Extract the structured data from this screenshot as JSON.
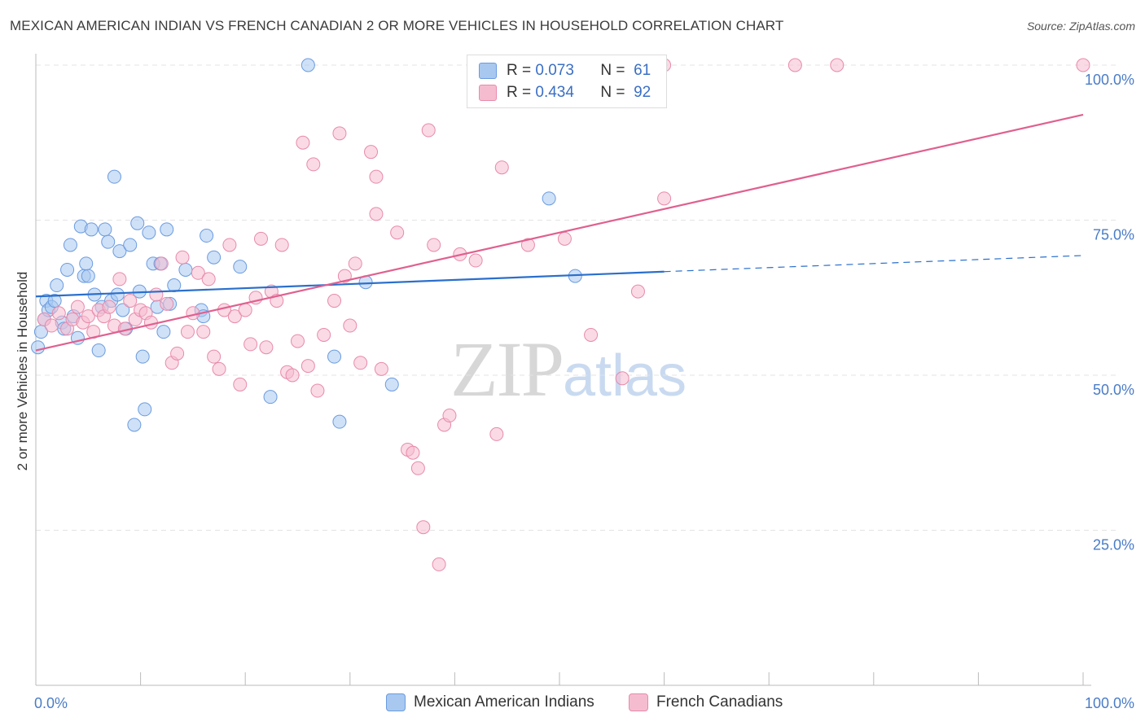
{
  "title": "MEXICAN AMERICAN INDIAN VS FRENCH CANADIAN 2 OR MORE VEHICLES IN HOUSEHOLD CORRELATION CHART",
  "source": "Source: ZipAtlas.com",
  "watermark": {
    "zip": "ZIP",
    "atlas": "atlas"
  },
  "legend": {
    "rows": [
      {
        "r_label": "R =",
        "r_value": "0.073",
        "n_label": "N =",
        "n_value": "61",
        "color": "#a8c8f0",
        "border": "#6a9be0"
      },
      {
        "r_label": "R =",
        "r_value": "0.434",
        "n_label": "N =",
        "n_value": "92",
        "color": "#f5bcd0",
        "border": "#e88aab"
      }
    ]
  },
  "bottom_legend": [
    {
      "label": "Mexican American Indians",
      "color": "#a8c8f0",
      "border": "#6a9be0"
    },
    {
      "label": "French Canadians",
      "color": "#f5bcd0",
      "border": "#e88aab"
    }
  ],
  "chart_data": {
    "type": "scatter",
    "title": "MEXICAN AMERICAN INDIAN VS FRENCH CANADIAN 2 OR MORE VEHICLES IN HOUSEHOLD CORRELATION CHART",
    "xlabel": "",
    "ylabel": "2 or more Vehicles in Household",
    "xlim": [
      0,
      100
    ],
    "ylim": [
      0,
      100
    ],
    "x_tick_labels": [
      "0.0%",
      "100.0%"
    ],
    "y_ticks": [
      25,
      50,
      75,
      100
    ],
    "y_tick_labels": [
      "25.0%",
      "50.0%",
      "75.0%",
      "100.0%"
    ],
    "grid": true,
    "legend_position": "top-center",
    "series": [
      {
        "name": "Mexican American Indians",
        "color": "#6a9be0",
        "fill": "#a8c8f0",
        "trend": {
          "x": [
            0,
            60
          ],
          "y": [
            62.7,
            66.7
          ],
          "dashed_to": [
            100,
            69.3
          ],
          "color": "#2a6fcc"
        },
        "points": [
          [
            0.2,
            54.5
          ],
          [
            0.5,
            57
          ],
          [
            0.8,
            59
          ],
          [
            1,
            62
          ],
          [
            1.2,
            60.5
          ],
          [
            1.5,
            61
          ],
          [
            1.8,
            62
          ],
          [
            2,
            64.5
          ],
          [
            2.5,
            58.5
          ],
          [
            2.7,
            57.5
          ],
          [
            3,
            67
          ],
          [
            3.3,
            71
          ],
          [
            3.6,
            59.5
          ],
          [
            4,
            56
          ],
          [
            4.3,
            74
          ],
          [
            4.6,
            66
          ],
          [
            4.8,
            68
          ],
          [
            5,
            66
          ],
          [
            5.3,
            73.5
          ],
          [
            5.6,
            63
          ],
          [
            6,
            54
          ],
          [
            6.3,
            61
          ],
          [
            6.6,
            73.5
          ],
          [
            6.9,
            71.5
          ],
          [
            7.2,
            62
          ],
          [
            7.5,
            82
          ],
          [
            7.8,
            63
          ],
          [
            8,
            70
          ],
          [
            8.3,
            60.5
          ],
          [
            8.6,
            57.5
          ],
          [
            9,
            71
          ],
          [
            9.4,
            42
          ],
          [
            9.7,
            74.5
          ],
          [
            9.9,
            63.5
          ],
          [
            10.2,
            53
          ],
          [
            10.4,
            44.5
          ],
          [
            10.8,
            73
          ],
          [
            11.2,
            68
          ],
          [
            11.6,
            61
          ],
          [
            11.9,
            68
          ],
          [
            12.2,
            57
          ],
          [
            12.5,
            73.5
          ],
          [
            12.8,
            61.5
          ],
          [
            13.2,
            64.5
          ],
          [
            14.3,
            67
          ],
          [
            15.8,
            60.5
          ],
          [
            16,
            59.5
          ],
          [
            16.3,
            72.5
          ],
          [
            17,
            69
          ],
          [
            19.5,
            67.5
          ],
          [
            22.4,
            46.5
          ],
          [
            26,
            100
          ],
          [
            28.5,
            53
          ],
          [
            29,
            42.5
          ],
          [
            31.5,
            65
          ],
          [
            34,
            48.5
          ],
          [
            49,
            78.5
          ],
          [
            51.5,
            66
          ]
        ]
      },
      {
        "name": "French Canadians",
        "color": "#e88aab",
        "fill": "#f5bcd0",
        "trend": {
          "x": [
            0,
            100
          ],
          "y": [
            54,
            92
          ],
          "color": "#e0608f"
        },
        "points": [
          [
            0.8,
            59
          ],
          [
            1.5,
            58
          ],
          [
            2.2,
            60
          ],
          [
            3,
            57.5
          ],
          [
            3.5,
            59
          ],
          [
            4,
            61
          ],
          [
            4.5,
            58.5
          ],
          [
            5,
            59.5
          ],
          [
            5.5,
            57
          ],
          [
            6,
            60.5
          ],
          [
            6.5,
            59.5
          ],
          [
            7,
            61
          ],
          [
            7.5,
            58
          ],
          [
            8,
            65.5
          ],
          [
            8.5,
            57.5
          ],
          [
            9,
            62
          ],
          [
            9.5,
            59
          ],
          [
            10,
            60.5
          ],
          [
            10.5,
            60
          ],
          [
            11,
            58.5
          ],
          [
            11.5,
            63
          ],
          [
            12,
            68
          ],
          [
            12.5,
            61.5
          ],
          [
            13,
            52
          ],
          [
            13.5,
            53.5
          ],
          [
            14,
            69
          ],
          [
            14.5,
            57
          ],
          [
            15,
            60
          ],
          [
            15.5,
            66.5
          ],
          [
            16,
            57
          ],
          [
            16.5,
            65.5
          ],
          [
            17,
            53
          ],
          [
            17.5,
            51
          ],
          [
            18,
            60.5
          ],
          [
            18.5,
            71
          ],
          [
            19,
            59.5
          ],
          [
            19.5,
            48.5
          ],
          [
            20,
            60.5
          ],
          [
            20.5,
            55
          ],
          [
            21,
            62.5
          ],
          [
            21.5,
            72
          ],
          [
            22,
            54.5
          ],
          [
            22.5,
            63.5
          ],
          [
            23,
            62
          ],
          [
            23.5,
            71
          ],
          [
            24,
            50.5
          ],
          [
            24.5,
            50
          ],
          [
            25,
            55.5
          ],
          [
            25.5,
            87.5
          ],
          [
            26,
            51.5
          ],
          [
            26.5,
            84
          ],
          [
            26.9,
            47.5
          ],
          [
            27.5,
            56.5
          ],
          [
            28.5,
            62
          ],
          [
            29,
            89
          ],
          [
            29.5,
            66
          ],
          [
            30,
            58
          ],
          [
            30.5,
            68
          ],
          [
            31,
            52
          ],
          [
            32,
            86
          ],
          [
            32.5,
            82
          ],
          [
            33,
            51
          ],
          [
            32.5,
            76
          ],
          [
            34.5,
            73
          ],
          [
            35.5,
            38
          ],
          [
            36,
            37.5
          ],
          [
            36.5,
            35
          ],
          [
            37,
            25.5
          ],
          [
            37.5,
            89.5
          ],
          [
            38,
            71
          ],
          [
            38.5,
            19.5
          ],
          [
            39,
            42
          ],
          [
            39.5,
            43.5
          ],
          [
            40.5,
            69.5
          ],
          [
            42,
            68.5
          ],
          [
            44,
            40.5
          ],
          [
            44.5,
            83.5
          ],
          [
            47,
            71
          ],
          [
            48,
            100
          ],
          [
            50.5,
            72
          ],
          [
            53,
            56.5
          ],
          [
            56,
            49.5
          ],
          [
            57.5,
            63.5
          ],
          [
            60,
            78.5
          ],
          [
            60,
            100
          ],
          [
            72.5,
            100
          ],
          [
            76.5,
            100
          ],
          [
            100,
            100
          ]
        ]
      }
    ]
  }
}
